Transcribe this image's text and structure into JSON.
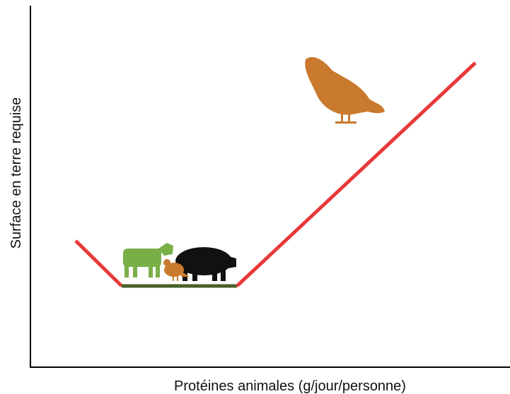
{
  "x_axis_label": "Protéines animales (g/jour/personne)",
  "y_axis_label": "Surface en terre requise"
}
